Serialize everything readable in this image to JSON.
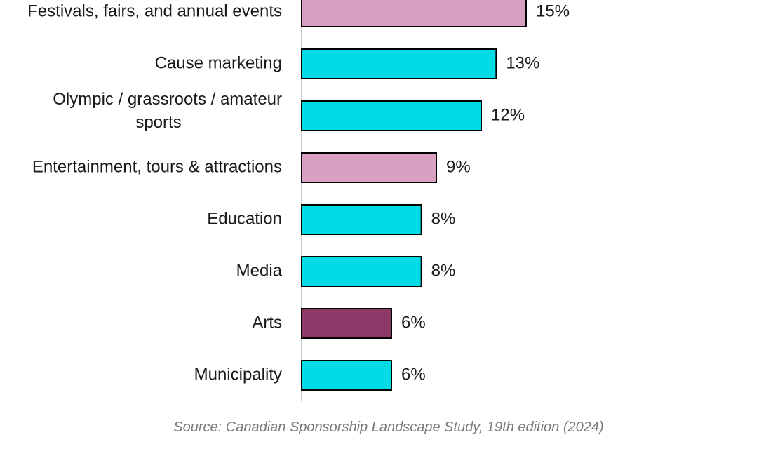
{
  "chart_data": {
    "type": "bar",
    "orientation": "horizontal",
    "categories": [
      "Festivals, fairs, and annual events",
      "Cause marketing",
      "Olympic / grassroots / amateur sports",
      "Entertainment, tours & attractions",
      "Education",
      "Media",
      "Arts",
      "Municipality"
    ],
    "category_lines": [
      [
        "Festivals, fairs, and annual events"
      ],
      [
        "Cause marketing"
      ],
      [
        "Olympic / grassroots / amateur",
        "sports"
      ],
      [
        "Entertainment, tours & attractions"
      ],
      [
        "Education"
      ],
      [
        "Media"
      ],
      [
        "Arts"
      ],
      [
        "Municipality"
      ]
    ],
    "values": [
      15,
      13,
      12,
      9,
      8,
      8,
      6,
      6
    ],
    "value_labels": [
      "15%",
      "13%",
      "12%",
      "9%",
      "8%",
      "8%",
      "6%",
      "6%"
    ],
    "bar_colors": [
      "#d8a0c2",
      "#00dce6",
      "#00dce6",
      "#d8a0c2",
      "#00dce6",
      "#00dce6",
      "#8e3a69",
      "#00dce6"
    ],
    "xlim": [
      0,
      27
    ],
    "grid": false,
    "legend": "none"
  },
  "footer": {
    "source": "Source: Canadian Sponsorship Landscape Study, 19th edition (2024)"
  }
}
